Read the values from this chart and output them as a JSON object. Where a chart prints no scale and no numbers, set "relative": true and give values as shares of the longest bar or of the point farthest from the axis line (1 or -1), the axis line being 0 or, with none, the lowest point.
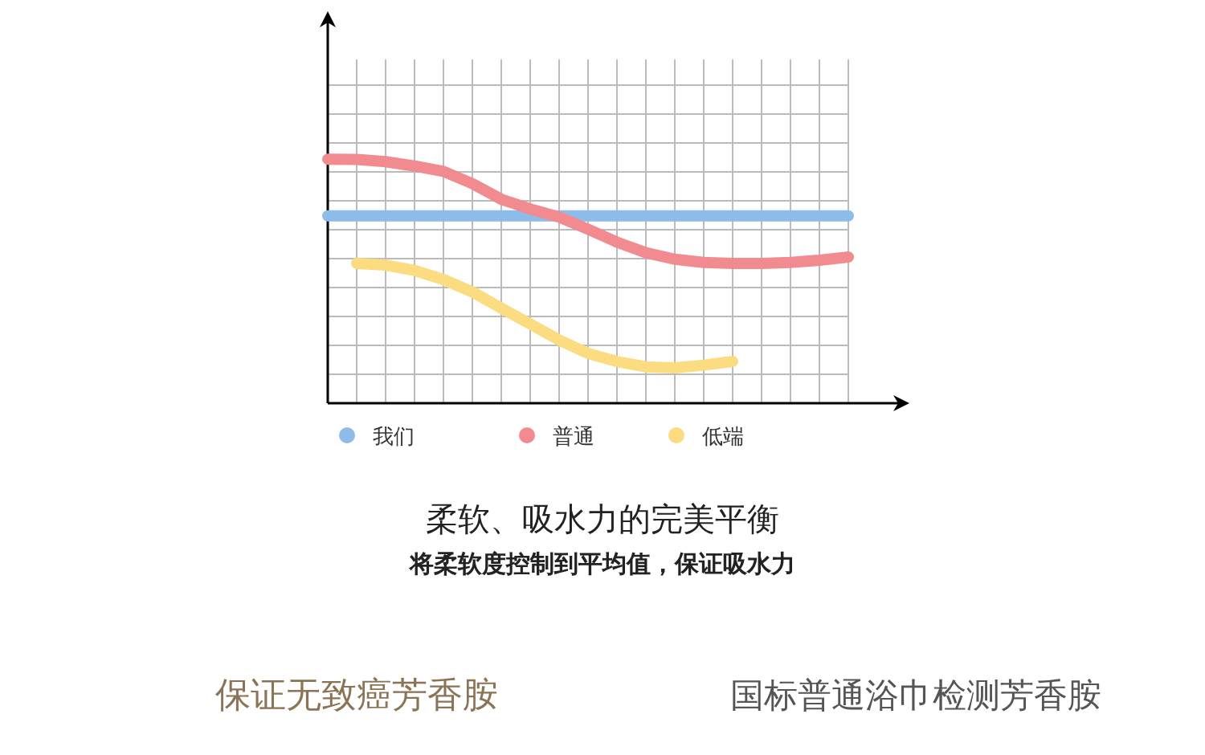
{
  "chart_data": {
    "type": "line",
    "relative": true,
    "grid": true,
    "legend": "bottom",
    "title": "柔软、吸水力的完美平衡",
    "subtitle": "将柔软度控制到平均值，保证吸水力",
    "annotations": [
      "保证无致癌芳香胺",
      "国标普通浴巾检测芳香胺"
    ],
    "categories": [
      null,
      null,
      null,
      null,
      null,
      null,
      null,
      null,
      null,
      null,
      null,
      null,
      null,
      null,
      null,
      null,
      null,
      null,
      null
    ],
    "series": [
      {
        "name": "我们",
        "color": "#8dbbea",
        "values": [
          0.768,
          0.768,
          0.768,
          0.768,
          0.768,
          0.768,
          0.768,
          0.768,
          0.768,
          0.768,
          0.768,
          0.768,
          0.768,
          0.768,
          0.768,
          0.768,
          0.768,
          0.768,
          0.768
        ]
      },
      {
        "name": "普通",
        "color": "#f28b8f",
        "values": [
          1.0,
          0.999,
          0.99,
          0.972,
          0.95,
          0.9,
          0.836,
          0.796,
          0.763,
          0.713,
          0.66,
          0.617,
          0.59,
          0.577,
          0.573,
          0.573,
          0.577,
          0.586,
          0.599
        ]
      },
      {
        "name": "低端",
        "color": "#fbdc80",
        "values": [
          null,
          0.573,
          0.566,
          0.544,
          0.507,
          0.456,
          0.39,
          0.325,
          0.259,
          0.204,
          0.171,
          0.149,
          0.145,
          0.156,
          0.171,
          null,
          null,
          null,
          null
        ]
      }
    ]
  }
}
